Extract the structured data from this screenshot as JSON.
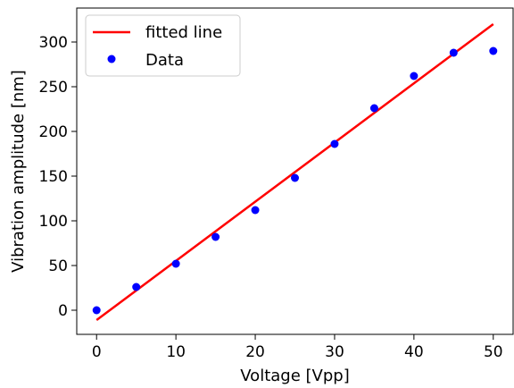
{
  "chart_data": {
    "type": "scatter",
    "xlabel": "Voltage [Vpp]",
    "ylabel": "Vibration amplitude [nm]",
    "xlim": [
      -2.5,
      52.5
    ],
    "ylim": [
      -27,
      338
    ],
    "x_ticks": [
      0,
      10,
      20,
      30,
      40,
      50
    ],
    "y_ticks": [
      0,
      50,
      100,
      150,
      200,
      250,
      300
    ],
    "grid": false,
    "legend_position": "top-left",
    "series": [
      {
        "name": "fitted line",
        "kind": "line",
        "color": "#ff0000",
        "x": [
          0,
          50
        ],
        "y": [
          -11,
          320
        ]
      },
      {
        "name": "Data",
        "kind": "scatter",
        "color": "#0000ff",
        "x": [
          0,
          5,
          10,
          15,
          20,
          25,
          30,
          35,
          40,
          45,
          50
        ],
        "y": [
          0,
          26,
          52,
          82,
          112,
          148,
          186,
          226,
          262,
          288,
          290
        ]
      }
    ]
  }
}
